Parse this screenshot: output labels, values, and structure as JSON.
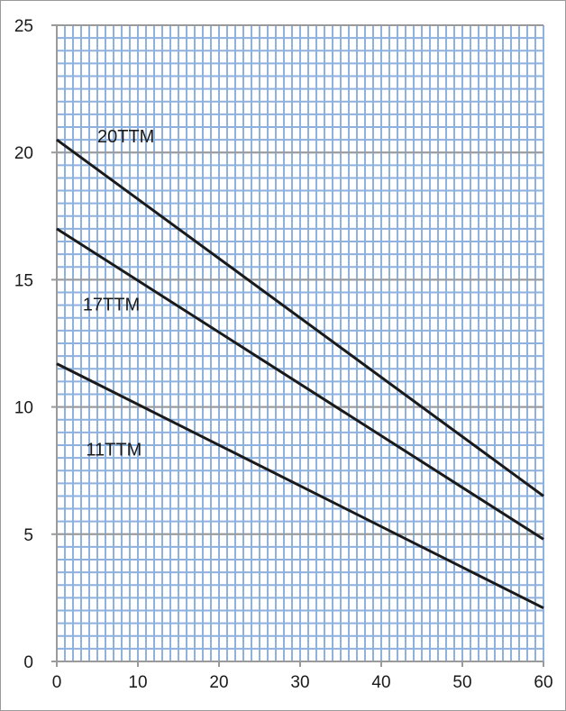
{
  "chart_data": {
    "type": "line",
    "title": "",
    "xlabel": "",
    "ylabel": "",
    "xlim": [
      0,
      60
    ],
    "ylim": [
      0,
      25
    ],
    "x_ticks": [
      0,
      10,
      20,
      30,
      40,
      50,
      60
    ],
    "y_ticks": [
      0,
      5,
      10,
      15,
      20,
      25
    ],
    "grid": true,
    "minor_grid": true,
    "legend": "none",
    "colors": {
      "plot_background": "#ffffff",
      "minor_grid": "#8eb1dd",
      "major_grid": "#9a9a9a",
      "series_line": "#1a1a1a",
      "outer_border": "#9a9a9a"
    },
    "series": [
      {
        "name": "20TTM",
        "x": [
          0,
          60
        ],
        "y": [
          20.5,
          6.5
        ]
      },
      {
        "name": "17TTM",
        "x": [
          0,
          60
        ],
        "y": [
          17.0,
          4.8
        ]
      },
      {
        "name": "11TTM",
        "x": [
          0,
          60
        ],
        "y": [
          11.7,
          2.1
        ]
      }
    ],
    "series_label_anchors": [
      {
        "x": 5,
        "y": 20.4
      },
      {
        "x": 3.2,
        "y": 13.8
      },
      {
        "x": 3.6,
        "y": 8.1
      }
    ]
  }
}
